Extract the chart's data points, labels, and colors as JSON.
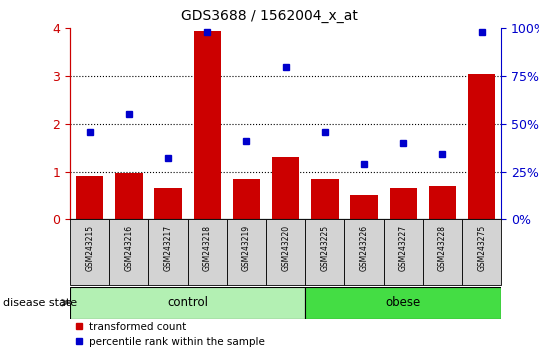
{
  "title": "GDS3688 / 1562004_x_at",
  "samples": [
    "GSM243215",
    "GSM243216",
    "GSM243217",
    "GSM243218",
    "GSM243219",
    "GSM243220",
    "GSM243225",
    "GSM243226",
    "GSM243227",
    "GSM243228",
    "GSM243275"
  ],
  "red_bars": [
    0.92,
    0.97,
    0.65,
    3.95,
    0.85,
    1.3,
    0.85,
    0.52,
    0.65,
    0.7,
    3.05
  ],
  "blue_dots_pct": [
    46,
    55,
    32,
    98,
    41,
    80,
    46,
    29,
    40,
    34,
    98
  ],
  "control_indices": [
    0,
    1,
    2,
    3,
    4,
    5
  ],
  "obese_indices": [
    6,
    7,
    8,
    9,
    10
  ],
  "ylim_left": [
    0,
    4
  ],
  "ylim_right": [
    0,
    100
  ],
  "yticks_left": [
    0,
    1,
    2,
    3,
    4
  ],
  "yticks_right": [
    0,
    25,
    50,
    75,
    100
  ],
  "yticklabels_right": [
    "0%",
    "25%",
    "50%",
    "75%",
    "100%"
  ],
  "left_axis_color": "#CC0000",
  "right_axis_color": "#0000CC",
  "bar_color": "#CC0000",
  "dot_color": "#0000CC",
  "control_color": "#B3F0B3",
  "obese_color": "#44DD44",
  "xlabel_area_color": "#d3d3d3",
  "legend_bar_label": "transformed count",
  "legend_dot_label": "percentile rank within the sample",
  "disease_state_label": "disease state"
}
